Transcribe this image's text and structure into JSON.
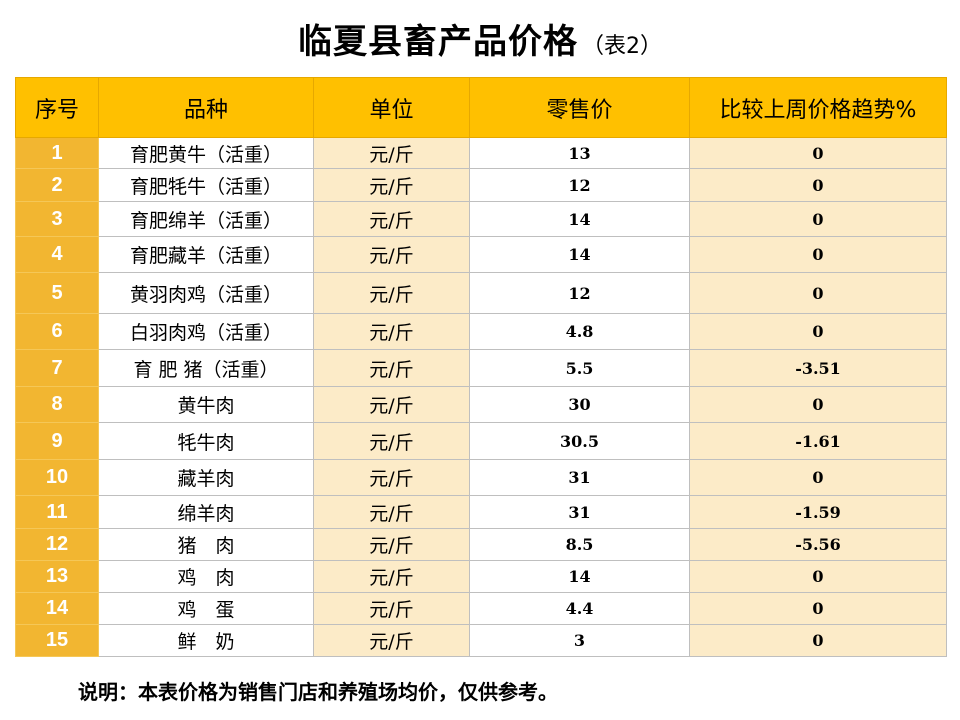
{
  "title": "临夏县畜产品价格",
  "subtitle": "（表2）",
  "headers": {
    "index": "序号",
    "item": "品种",
    "unit": "单位",
    "price": "零售价",
    "change": "比较上周价格趋势%"
  },
  "rows": [
    {
      "index": "1",
      "item": "育肥黄牛（活重）",
      "unit": "元/斤",
      "price": "13",
      "change": "0"
    },
    {
      "index": "2",
      "item": "育肥牦牛（活重）",
      "unit": "元/斤",
      "price": "12",
      "change": "0"
    },
    {
      "index": "3",
      "item": "育肥绵羊（活重）",
      "unit": "元/斤",
      "price": "14",
      "change": "0"
    },
    {
      "index": "4",
      "item": "育肥藏羊（活重）",
      "unit": "元/斤",
      "price": "14",
      "change": "0"
    },
    {
      "index": "5",
      "item": "黄羽肉鸡（活重）",
      "unit": "元/斤",
      "price": "12",
      "change": "0"
    },
    {
      "index": "6",
      "item": "白羽肉鸡（活重）",
      "unit": "元/斤",
      "price": "4.8",
      "change": "0"
    },
    {
      "index": "7",
      "item": "育 肥 猪（活重）",
      "unit": "元/斤",
      "price": "5.5",
      "change": "-3.51"
    },
    {
      "index": "8",
      "item": "黄牛肉",
      "unit": "元/斤",
      "price": "30",
      "change": "0"
    },
    {
      "index": "9",
      "item": "牦牛肉",
      "unit": "元/斤",
      "price": "30.5",
      "change": "-1.61"
    },
    {
      "index": "10",
      "item": "藏羊肉",
      "unit": "元/斤",
      "price": "31",
      "change": "0"
    },
    {
      "index": "11",
      "item": "绵羊肉",
      "unit": "元/斤",
      "price": "31",
      "change": "-1.59"
    },
    {
      "index": "12",
      "item": "猪　肉",
      "unit": "元/斤",
      "price": "8.5",
      "change": "-5.56"
    },
    {
      "index": "13",
      "item": "鸡　肉",
      "unit": "元/斤",
      "price": "14",
      "change": "0"
    },
    {
      "index": "14",
      "item": "鸡　蛋",
      "unit": "元/斤",
      "price": "4.4",
      "change": "0"
    },
    {
      "index": "15",
      "item": "鲜　奶",
      "unit": "元/斤",
      "price": "3",
      "change": "0"
    }
  ],
  "note": "说明：本表价格为销售门店和养殖场均价，仅供参考。",
  "colors": {
    "header_bg": "#FFC000",
    "index_bg": "#F2B631",
    "cream_cell": "#FCEBC8"
  }
}
